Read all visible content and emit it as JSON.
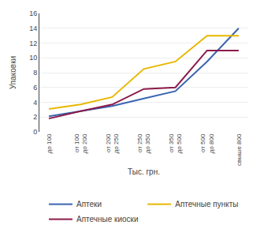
{
  "chart_data": {
    "type": "line",
    "categories": [
      "до 100",
      "от 100\nдо 200",
      "от 200\nдо 250",
      "от 250\nдо 350",
      "от 350\nдо 500",
      "от 500\nдо 800",
      "свыше 800"
    ],
    "series": [
      {
        "name": "Аптеки",
        "color": "#3a65b0",
        "values": [
          2.1,
          2.8,
          3.5,
          4.5,
          5.5,
          9.5,
          14.0
        ]
      },
      {
        "name": "Аптечные пункты",
        "color": "#e8b800",
        "values": [
          3.1,
          3.7,
          4.7,
          8.5,
          9.5,
          13.0,
          13.0
        ]
      },
      {
        "name": "Аптечные киоски",
        "color": "#8b1a4a",
        "values": [
          1.8,
          2.8,
          3.7,
          5.8,
          6.0,
          11.0,
          11.0
        ]
      }
    ],
    "xlabel": "Тыс. грн.",
    "ylabel": "Упаковки",
    "ylim": [
      0,
      16
    ],
    "yticks": [
      0,
      2,
      4,
      6,
      8,
      10,
      12,
      14,
      16
    ],
    "legend": "bottom"
  }
}
